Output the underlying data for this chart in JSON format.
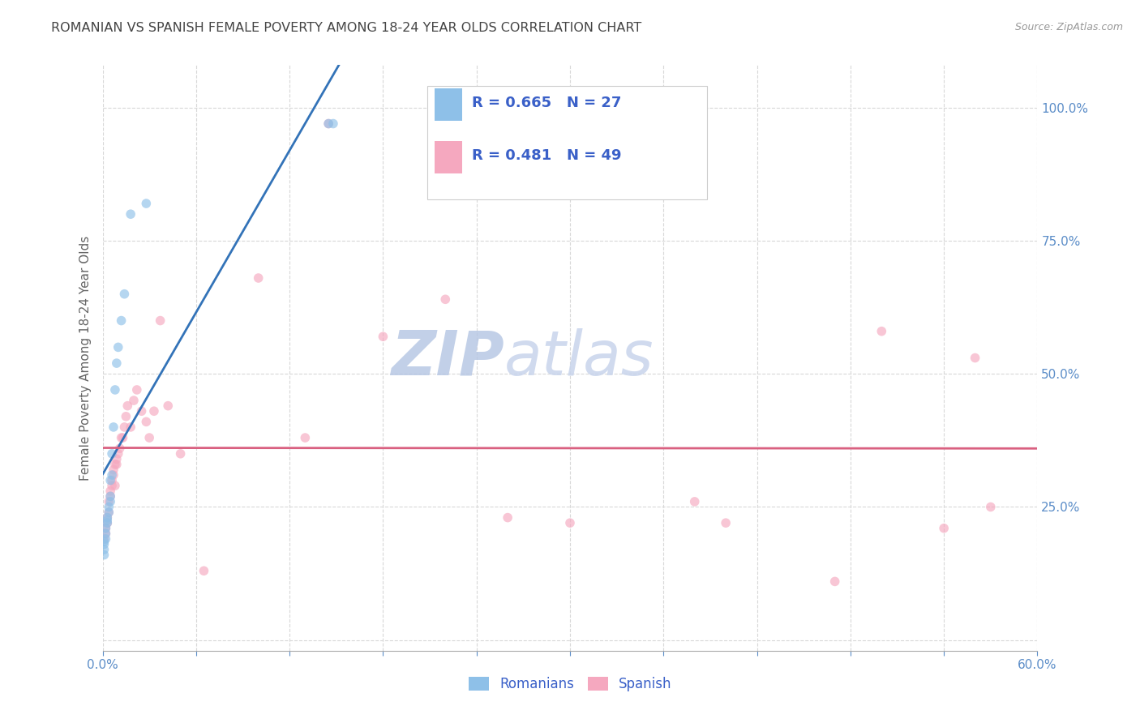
{
  "title": "ROMANIAN VS SPANISH FEMALE POVERTY AMONG 18-24 YEAR OLDS CORRELATION CHART",
  "source": "Source: ZipAtlas.com",
  "ylabel": "Female Poverty Among 18-24 Year Olds",
  "xlim": [
    0.0,
    0.6
  ],
  "ylim": [
    -0.02,
    1.08
  ],
  "xticks": [
    0.0,
    0.06,
    0.12,
    0.18,
    0.24,
    0.3,
    0.36,
    0.42,
    0.48,
    0.54,
    0.6
  ],
  "xticklabels": [
    "0.0%",
    "",
    "",
    "",
    "",
    "",
    "",
    "",
    "",
    "",
    "60.0%"
  ],
  "ytick_positions": [
    0.0,
    0.25,
    0.5,
    0.75,
    1.0
  ],
  "yticklabels": [
    "",
    "25.0%",
    "50.0%",
    "75.0%",
    "100.0%"
  ],
  "romanian_R": 0.665,
  "romanian_N": 27,
  "spanish_R": 0.481,
  "spanish_N": 49,
  "romanian_color": "#8ec0e8",
  "romanian_line_color": "#3373b8",
  "spanish_color": "#f5a8bf",
  "spanish_line_color": "#d96080",
  "background_color": "#ffffff",
  "grid_color": "#d8d8d8",
  "title_color": "#444444",
  "axis_label_color": "#666666",
  "tick_color": "#5b8dc8",
  "legend_text_color": "#3a60c8",
  "watermark_color": "#ccd8ee",
  "romanian_x": [
    0.001,
    0.001,
    0.001,
    0.001,
    0.002,
    0.002,
    0.002,
    0.003,
    0.003,
    0.003,
    0.004,
    0.004,
    0.005,
    0.005,
    0.005,
    0.006,
    0.006,
    0.007,
    0.008,
    0.009,
    0.01,
    0.012,
    0.014,
    0.018,
    0.028,
    0.145,
    0.148
  ],
  "romanian_y": [
    0.16,
    0.17,
    0.18,
    0.185,
    0.19,
    0.2,
    0.21,
    0.22,
    0.225,
    0.23,
    0.24,
    0.25,
    0.26,
    0.27,
    0.3,
    0.31,
    0.35,
    0.4,
    0.47,
    0.52,
    0.55,
    0.6,
    0.65,
    0.8,
    0.82,
    0.97,
    0.97
  ],
  "spanish_x": [
    0.001,
    0.002,
    0.002,
    0.003,
    0.003,
    0.004,
    0.004,
    0.005,
    0.005,
    0.006,
    0.006,
    0.007,
    0.007,
    0.008,
    0.008,
    0.009,
    0.009,
    0.01,
    0.011,
    0.012,
    0.013,
    0.014,
    0.015,
    0.016,
    0.018,
    0.02,
    0.022,
    0.025,
    0.028,
    0.03,
    0.033,
    0.037,
    0.042,
    0.05,
    0.065,
    0.1,
    0.13,
    0.145,
    0.18,
    0.22,
    0.26,
    0.3,
    0.38,
    0.4,
    0.47,
    0.5,
    0.54,
    0.56,
    0.57
  ],
  "spanish_y": [
    0.19,
    0.2,
    0.21,
    0.22,
    0.23,
    0.24,
    0.26,
    0.27,
    0.28,
    0.29,
    0.3,
    0.31,
    0.32,
    0.29,
    0.33,
    0.33,
    0.34,
    0.35,
    0.36,
    0.38,
    0.38,
    0.4,
    0.42,
    0.44,
    0.4,
    0.45,
    0.47,
    0.43,
    0.41,
    0.38,
    0.43,
    0.6,
    0.44,
    0.35,
    0.13,
    0.68,
    0.38,
    0.97,
    0.57,
    0.64,
    0.23,
    0.22,
    0.26,
    0.22,
    0.11,
    0.58,
    0.21,
    0.53,
    0.25
  ],
  "marker_size": 70,
  "marker_alpha": 0.65,
  "line_width": 2.0
}
